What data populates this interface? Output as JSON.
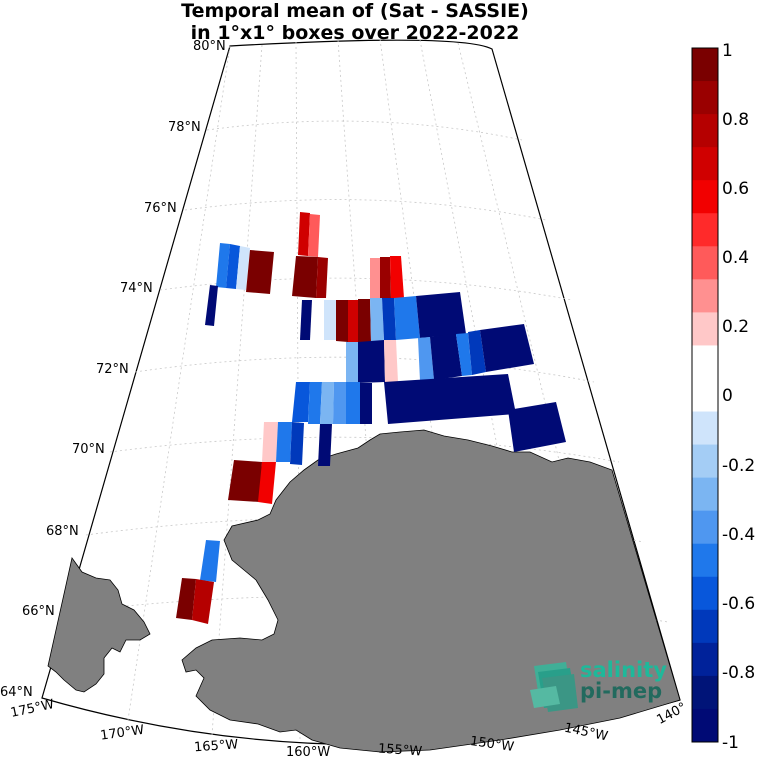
{
  "title": {
    "line1": "Temporal mean of (Sat - SASSIE)",
    "line2": "in 1°x1° boxes over 2022-2022"
  },
  "map": {
    "projection": "polar stereographic",
    "land_color": "#808080",
    "lat_labels": [
      "64°N",
      "66°N",
      "68°N",
      "70°N",
      "72°N",
      "74°N",
      "76°N",
      "78°N",
      "80°N"
    ],
    "lon_labels": [
      "175°W",
      "170°W",
      "165°W",
      "160°W",
      "155°W",
      "150°W",
      "145°W",
      "140°"
    ]
  },
  "colorbar": {
    "range": [
      -1,
      1
    ],
    "tick_labels": [
      "1",
      "0.8",
      "0.6",
      "0.4",
      "0.2",
      "0",
      "-0.2",
      "-0.4",
      "-0.6",
      "-0.8",
      "-1"
    ],
    "colors": [
      "#7a0000",
      "#9a0000",
      "#b50000",
      "#d00000",
      "#f20000",
      "#ff2a2a",
      "#ff5a5a",
      "#ff9090",
      "#ffc8c8",
      "#ffffff",
      "#ffffff",
      "#cfe4fb",
      "#a4cdf5",
      "#7bb5f2",
      "#4f97f0",
      "#1f78eb",
      "#0857db",
      "#0039bb",
      "#00229a",
      "#001478",
      "#000a75"
    ]
  },
  "logo": {
    "line1": "salinity",
    "line2": "pi-mep",
    "icon": "wave-icon"
  }
}
